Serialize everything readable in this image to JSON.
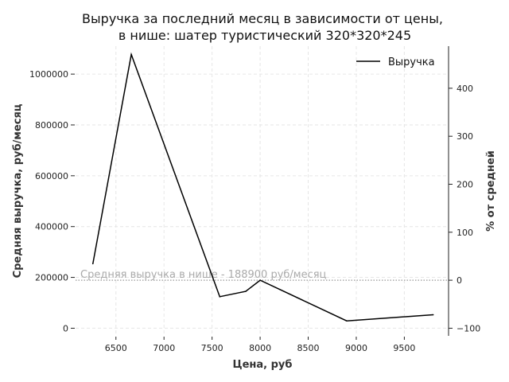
{
  "chart_data": {
    "type": "line",
    "title_line1": "Выручка за последний месяц в зависимости от цены,",
    "title_line2": "в нише: шатер туристический 320*320*245",
    "xlabel": "Цена, руб",
    "ylabel": "Средняя выручка, руб/месяц",
    "ylabel_right": "% от средней",
    "xlim": [
      6080,
      9960
    ],
    "ylim": [
      -30000,
      1110000
    ],
    "ylim_right": [
      -115.9,
      487.7
    ],
    "x_ticks": [
      6500,
      7000,
      7500,
      8000,
      8500,
      9000,
      9500
    ],
    "y_ticks": [
      0,
      200000,
      400000,
      600000,
      800000,
      1000000
    ],
    "y_ticks_right": [
      -100,
      0,
      100,
      200,
      300,
      400
    ],
    "grid": true,
    "legend_position": "top-right",
    "series": [
      {
        "name": "Выручка",
        "color": "#000000",
        "x": [
          6260,
          6660,
          7580,
          7850,
          8000,
          8900,
          9800
        ],
        "values": [
          254000,
          1077000,
          124000,
          145000,
          189000,
          29000,
          53000
        ]
      }
    ],
    "reference_line": {
      "value": 188900,
      "label": "Средняя выручка в нише - 188900 руб/месяц",
      "color": "#aaaaaa"
    }
  }
}
